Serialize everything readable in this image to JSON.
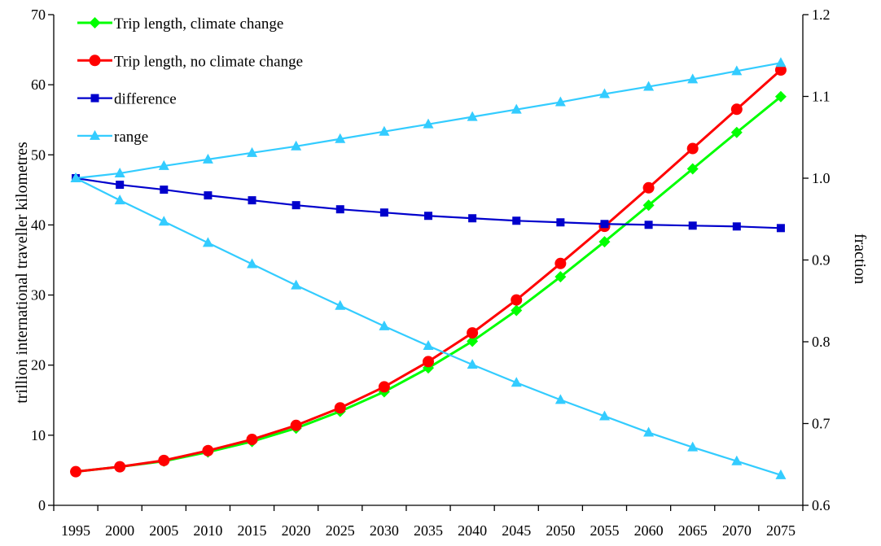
{
  "chart_data": {
    "type": "line",
    "title": "",
    "xlabel": "",
    "ylabel": "trillion international traveller kilometres",
    "y2label": "fraction",
    "ylim": [
      0,
      70
    ],
    "y2lim": [
      0.6,
      1.2
    ],
    "y_ticks": [
      "0",
      "10",
      "20",
      "30",
      "40",
      "50",
      "60",
      "70"
    ],
    "y2_ticks": [
      "0.6",
      "0.7",
      "0.8",
      "0.9",
      "1.0",
      "1.1",
      "1.2"
    ],
    "x": [
      "1995",
      "2000",
      "2005",
      "2010",
      "2015",
      "2020",
      "2025",
      "2030",
      "2035",
      "2040",
      "2045",
      "2050",
      "2055",
      "2060",
      "2065",
      "2070",
      "2075"
    ],
    "grid": false,
    "legend_position": "top-left",
    "series": [
      {
        "name": "Trip length, climate change",
        "axis": "left",
        "color": "#00ff00",
        "marker": "diamond",
        "values": [
          4.8,
          5.5,
          6.3,
          7.6,
          9.1,
          11.0,
          13.4,
          16.2,
          19.6,
          23.4,
          27.8,
          32.6,
          37.6,
          42.8,
          48.0,
          53.2,
          58.3
        ]
      },
      {
        "name": "Trip length, no climate change",
        "axis": "left",
        "color": "#ff0000",
        "marker": "circle",
        "values": [
          4.8,
          5.5,
          6.4,
          7.8,
          9.4,
          11.4,
          13.9,
          16.9,
          20.5,
          24.6,
          29.3,
          34.5,
          39.8,
          45.3,
          50.9,
          56.5,
          62.1
        ]
      },
      {
        "name": "difference",
        "axis": "right",
        "color": "#0000cc",
        "marker": "square",
        "values": [
          1.0,
          0.992,
          0.986,
          0.979,
          0.973,
          0.967,
          0.962,
          0.958,
          0.954,
          0.951,
          0.948,
          0.946,
          0.944,
          0.943,
          0.942,
          0.941,
          0.939
        ]
      },
      {
        "name": "range",
        "axis": "right",
        "color": "#33ccff",
        "marker": "triangle",
        "legend": true,
        "values": [
          1.0,
          1.006,
          1.015,
          1.023,
          1.031,
          1.039,
          1.048,
          1.057,
          1.066,
          1.075,
          1.084,
          1.093,
          1.103,
          1.112,
          1.121,
          1.131,
          1.141
        ]
      },
      {
        "axis": "right",
        "color": "#33ccff",
        "marker": "triangle",
        "legend": false,
        "values": [
          1.0,
          0.973,
          0.947,
          0.921,
          0.895,
          0.869,
          0.844,
          0.819,
          0.795,
          0.772,
          0.75,
          0.729,
          0.709,
          0.689,
          0.671,
          0.654,
          0.637
        ]
      }
    ]
  }
}
